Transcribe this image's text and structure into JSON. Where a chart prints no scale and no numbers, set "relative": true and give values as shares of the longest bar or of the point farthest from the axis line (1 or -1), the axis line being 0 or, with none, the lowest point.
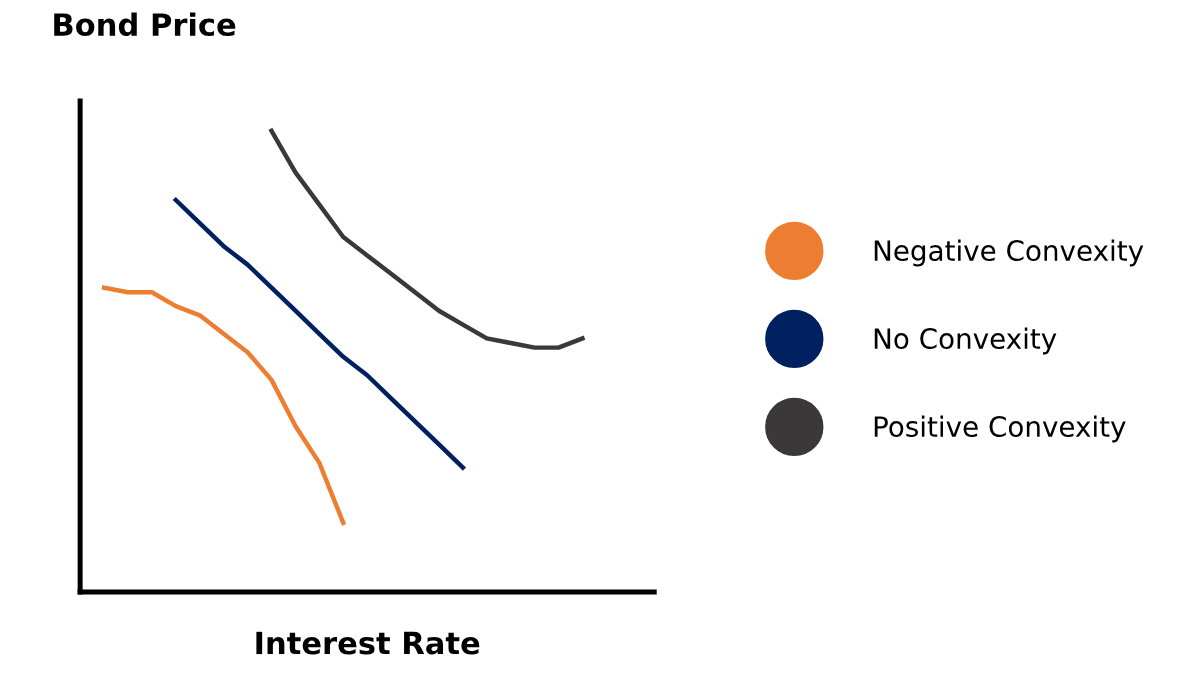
{
  "chart_data": {
    "type": "line",
    "relative": true,
    "xlabel": "Interest Rate",
    "ylabel": "Bond Price",
    "tick_labels": false,
    "legend": "right",
    "marker": "none",
    "line_style": "solid",
    "categories": [
      null,
      null,
      null,
      null,
      null,
      null,
      null,
      null,
      null,
      null,
      null,
      null,
      null,
      null,
      null,
      null,
      null,
      null,
      null,
      null,
      null,
      null,
      null,
      null
    ],
    "series": [
      {
        "name": "Negative Convexity",
        "color": "#ed7d31",
        "values": [
          0.66,
          0.65,
          0.65,
          0.62,
          0.6,
          0.56,
          0.52,
          0.46,
          0.36,
          0.28,
          0.15,
          null,
          null,
          null,
          null,
          null,
          null,
          null,
          null,
          null,
          null,
          null,
          null,
          null
        ]
      },
      {
        "name": "No Convexity",
        "color": "#002060",
        "values": [
          null,
          null,
          null,
          0.85,
          0.8,
          0.75,
          0.71,
          0.66,
          0.61,
          0.56,
          0.51,
          0.47,
          0.42,
          0.37,
          0.32,
          0.27,
          null,
          null,
          null,
          null,
          null,
          null,
          null,
          null
        ]
      },
      {
        "name": "Positive Convexity",
        "color": "#3a3838",
        "values": [
          null,
          null,
          null,
          null,
          null,
          null,
          null,
          1,
          0.91,
          0.84,
          0.77,
          0.73,
          0.69,
          0.65,
          0.61,
          0.58,
          0.55,
          0.54,
          0.53,
          0.53,
          0.55,
          null,
          null,
          null
        ]
      }
    ]
  }
}
